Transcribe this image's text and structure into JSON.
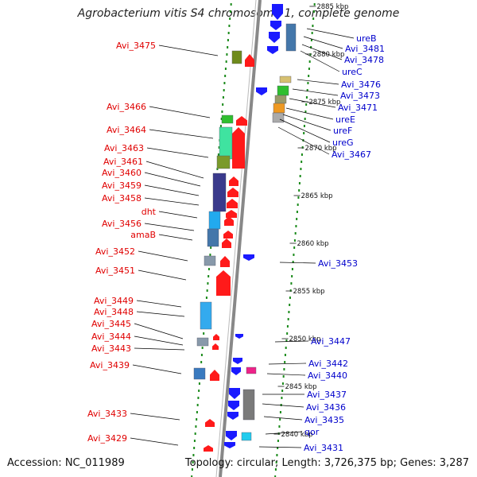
{
  "title": "Agrobacterium vitis S4 chromosome 1, complete genome",
  "footer": {
    "accession": "Accession: NC_011989",
    "stats": "Topology: circular; Length: 3,726,375 bp; Genes: 3,287"
  },
  "colors": {
    "forward_label": "#e00000",
    "reverse_label": "#0000cc",
    "forward_arrow": "#ff1a1a",
    "reverse_arrow": "#1a1aff",
    "backbone": "#888888",
    "ticks": "#1a8a1a",
    "link": "#000000"
  },
  "scale_labels": [
    "2885 kbp",
    "2880 kbp",
    "2875 kbp",
    "2870 kbp",
    "2865 kbp",
    "2860 kbp",
    "2855 kbp",
    "2850 kbp",
    "2845 kbp",
    "2840 kbp"
  ],
  "forward_genes": [
    "Avi_3475",
    "Avi_3466",
    "Avi_3464",
    "Avi_3463",
    "Avi_3461",
    "Avi_3460",
    "Avi_3459",
    "Avi_3458",
    "dht",
    "Avi_3456",
    "amaB",
    "Avi_3452",
    "Avi_3451",
    "Avi_3449",
    "Avi_3448",
    "Avi_3445",
    "Avi_3444",
    "Avi_3443",
    "Avi_3439",
    "Avi_3433",
    "Avi_3429"
  ],
  "reverse_genes": [
    "ureB",
    "Avi_3481",
    "Avi_3478",
    "ureC",
    "Avi_3476",
    "Avi_3473",
    "Avi_3471",
    "ureE",
    "ureF",
    "ureG",
    "Avi_3467",
    "Avi_3453",
    "Avi_3447",
    "Avi_3442",
    "Avi_3440",
    "Avi_3437",
    "Avi_3436",
    "Avi_3435",
    "qor",
    "Avi_3431"
  ]
}
